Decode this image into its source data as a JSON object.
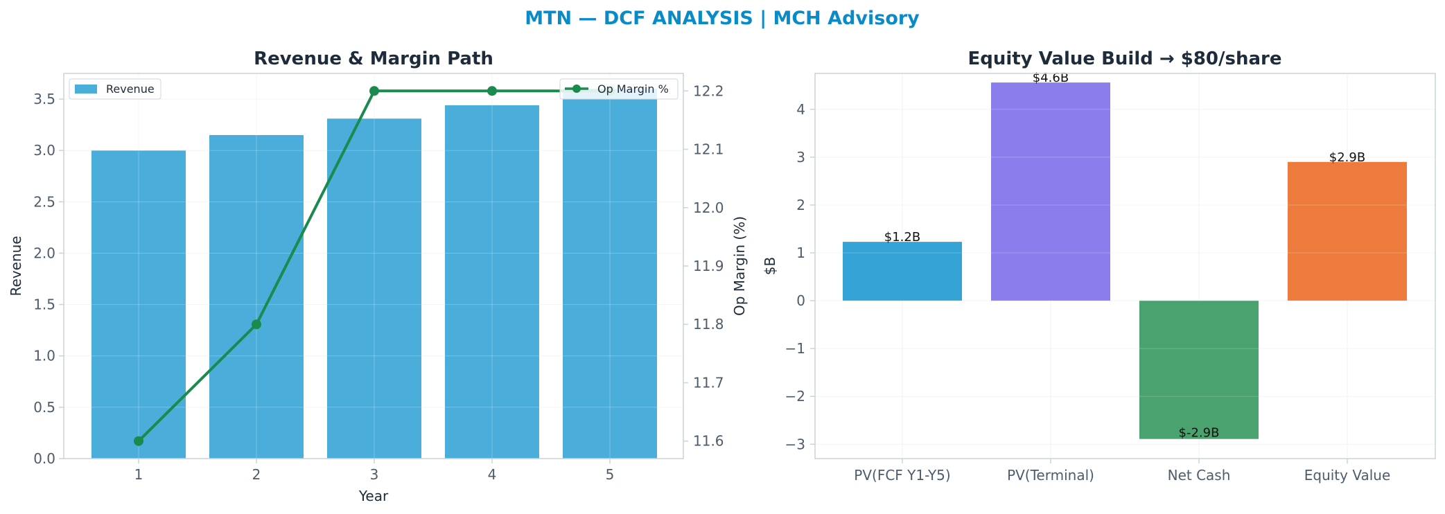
{
  "suptitle": "MTN — DCF ANALYSIS | MCH Advisory",
  "colors": {
    "suptitle": "#0a8bc7",
    "title": "#1e2b3a",
    "axis_text": "#4d5b6b",
    "label_text": "#1e2b3a",
    "spine": "#c9d3dc",
    "grid": "#eef2f5",
    "revenue_bar": "#4badd9",
    "margin_line": "#1a8a4f"
  },
  "chart_data": [
    {
      "type": "bar",
      "title": "Revenue & Margin Path",
      "xlabel": "Year",
      "ylabel": "Revenue",
      "y2label": "Op Margin (%)",
      "categories": [
        "1",
        "2",
        "3",
        "4",
        "5"
      ],
      "ylim": [
        0,
        3.75
      ],
      "yticks": [
        "0.0",
        "0.5",
        "1.0",
        "1.5",
        "2.0",
        "2.5",
        "3.0",
        "3.5"
      ],
      "y2lim": [
        11.57,
        12.23
      ],
      "y2ticks": [
        "11.6",
        "11.7",
        "11.8",
        "11.9",
        "12.0",
        "12.1",
        "12.2"
      ],
      "series": [
        {
          "name": "Revenue",
          "type": "bar",
          "axis": "left",
          "values": [
            3.0,
            3.15,
            3.31,
            3.44,
            3.6
          ]
        },
        {
          "name": "Op Margin %",
          "type": "line",
          "axis": "right",
          "values": [
            11.6,
            11.8,
            12.2,
            12.2,
            12.2
          ]
        }
      ],
      "grid": true,
      "legend": [
        "upper-left",
        "upper-right"
      ]
    },
    {
      "type": "bar",
      "title": "Equity Value Build → $80/share",
      "xlabel": "",
      "ylabel": "$B",
      "categories": [
        "PV(FCF Y1-Y5)",
        "PV(Terminal)",
        "Net Cash",
        "Equity Value"
      ],
      "values": [
        1.23,
        4.56,
        -2.89,
        2.9
      ],
      "data_labels": [
        "$1.2B",
        "$4.6B",
        "$-2.9B",
        "$2.9B"
      ],
      "colors": [
        "#35a3d5",
        "#8a7eec",
        "#4aa36e",
        "#ed7b3e"
      ],
      "ylim": [
        -3.3,
        4.75
      ],
      "yticks": [
        "−3",
        "−2",
        "−1",
        "0",
        "1",
        "2",
        "3",
        "4"
      ],
      "grid": true
    }
  ]
}
